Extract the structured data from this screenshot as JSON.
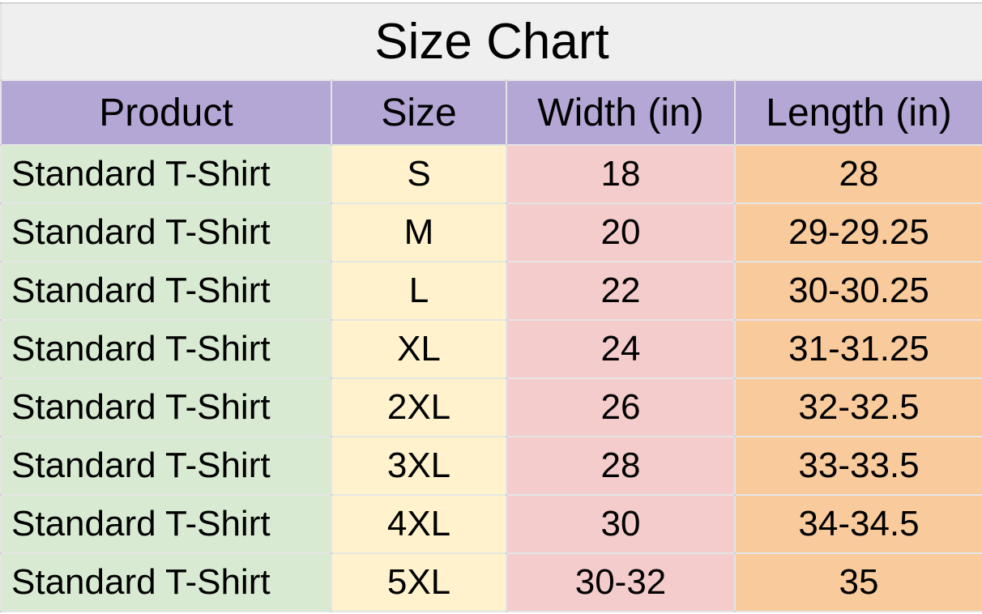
{
  "title": "Size Chart",
  "headers": [
    "Product",
    "Size",
    "Width (in)",
    "Length (in)"
  ],
  "rows": [
    [
      "Standard T-Shirt",
      "S",
      "18",
      "28"
    ],
    [
      "Standard T-Shirt",
      "M",
      "20",
      "29-29.25"
    ],
    [
      "Standard T-Shirt",
      "L",
      "22",
      "30-30.25"
    ],
    [
      "Standard T-Shirt",
      "XL",
      "24",
      "31-31.25"
    ],
    [
      "Standard T-Shirt",
      "2XL",
      "26",
      "32-32.5"
    ],
    [
      "Standard T-Shirt",
      "3XL",
      "28",
      "33-33.5"
    ],
    [
      "Standard T-Shirt",
      "4XL",
      "30",
      "34-34.5"
    ],
    [
      "Standard T-Shirt",
      "5XL",
      "30-32",
      "35"
    ]
  ],
  "colors": {
    "title_bg": "#efefef",
    "header_bg": "#b4a7d6",
    "product_bg": "#d9ead3",
    "size_bg": "#fff2cc",
    "width_bg": "#f4cccc",
    "length_bg": "#f9cb9c"
  }
}
